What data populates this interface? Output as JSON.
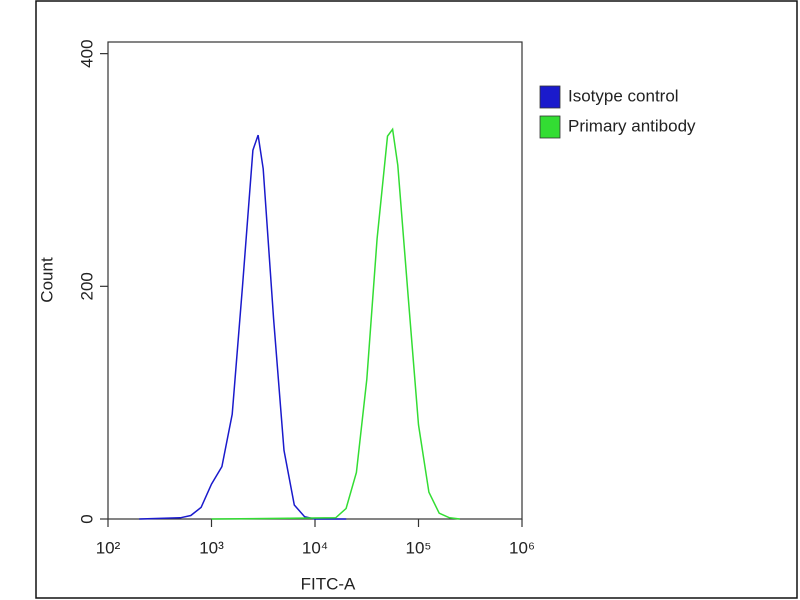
{
  "chart_data": {
    "type": "line",
    "xlabel": "FITC-A",
    "ylabel": "Count",
    "xscale": "log",
    "xlim": [
      100,
      1000000
    ],
    "xticks": [
      {
        "value": 100,
        "label": "10²"
      },
      {
        "value": 1000,
        "label": "10³"
      },
      {
        "value": 10000,
        "label": "10⁴"
      },
      {
        "value": 100000,
        "label": "10⁵"
      },
      {
        "value": 1000000,
        "label": "10⁶"
      }
    ],
    "ylim": [
      0,
      410
    ],
    "yticks": [
      0,
      200,
      400
    ],
    "legend": "right",
    "series": [
      {
        "name": "Isotype control",
        "color": "#1a1acc",
        "x": [
          200,
          500,
          631,
          794,
          1000,
          1259,
          1585,
          1995,
          2512,
          2818,
          3162,
          3981,
          5012,
          6310,
          7943,
          10000,
          20000
        ],
        "values": [
          0,
          1,
          3,
          10,
          30,
          45,
          90,
          200,
          317,
          330,
          301,
          172,
          59,
          12,
          2,
          0,
          0
        ]
      },
      {
        "name": "Primary antibody",
        "color": "#33dd33",
        "x": [
          1000,
          15849,
          19953,
          25119,
          31623,
          39811,
          50119,
          56234,
          63096,
          79433,
          100000,
          125893,
          158489,
          199526,
          251189
        ],
        "values": [
          0,
          1,
          9,
          40,
          120,
          241,
          329,
          335,
          304,
          191,
          81,
          23,
          5,
          1,
          0
        ]
      }
    ]
  }
}
